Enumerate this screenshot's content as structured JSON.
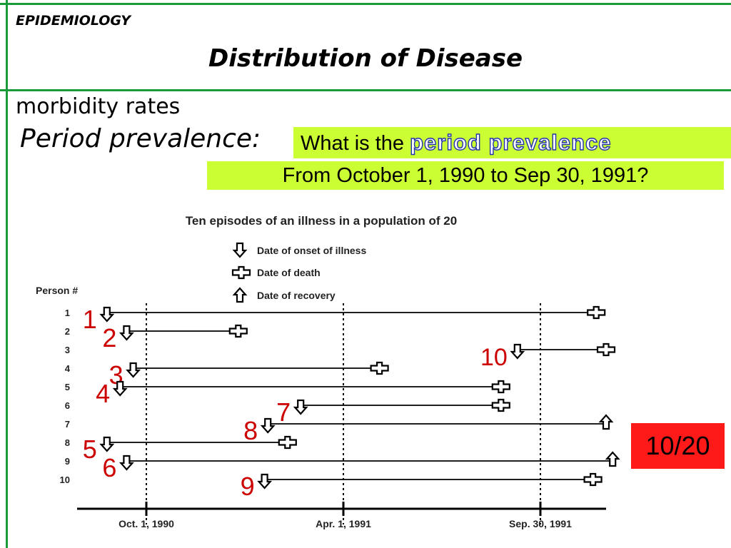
{
  "header": {
    "topic": "EPIDEMIOLOGY",
    "title": "Distribution of Disease"
  },
  "content": {
    "subtitle": "morbidity rates",
    "topic_line": "Period prevalence:",
    "question_prefix": "What is the ",
    "question_highlight": "period prevalence",
    "question_line2": "From October 1, 1990 to Sep 30, 1991?",
    "answer": "10/20"
  },
  "colors": {
    "frame": "#1a9a3a",
    "question_bg": "#ccff33",
    "answer_bg": "#ff1a1a",
    "highlight_stroke": "#2233aa",
    "red_label": "#cc0000"
  },
  "chart_data": {
    "type": "timeline",
    "title": "Ten episodes of an illness in a population of 20",
    "ylabel": "Person #",
    "legend": [
      {
        "symbol": "down-arrow",
        "label": "Date of onset of illness"
      },
      {
        "symbol": "cross",
        "label": "Date of death"
      },
      {
        "symbol": "up-arrow",
        "label": "Date of recovery"
      }
    ],
    "x_ticks": [
      {
        "label": "Oct. 1, 1990",
        "month": 0
      },
      {
        "label": "Apr. 1, 1991",
        "month": 6
      },
      {
        "label": "Sep. 30, 1991",
        "month": 12
      }
    ],
    "xlim": [
      -2,
      15.3
    ],
    "persons": [
      1,
      2,
      3,
      4,
      5,
      6,
      7,
      8,
      9,
      10
    ],
    "episodes": [
      {
        "person": 1,
        "onset": -1.2,
        "end": 13.7,
        "outcome": "death",
        "label": "1"
      },
      {
        "person": 2,
        "onset": -0.6,
        "end": 2.8,
        "outcome": "death",
        "label": "2"
      },
      {
        "person": 3,
        "onset": 11.3,
        "end": 14.0,
        "outcome": "death",
        "label": "10"
      },
      {
        "person": 4,
        "onset": -0.4,
        "end": 7.1,
        "outcome": "death",
        "label": "3"
      },
      {
        "person": 5,
        "onset": -0.8,
        "end": 10.8,
        "outcome": "death",
        "label": "4"
      },
      {
        "person": 6,
        "onset": 4.7,
        "end": 10.8,
        "outcome": "death",
        "label": "7"
      },
      {
        "person": 7,
        "onset": 3.7,
        "end": 14.0,
        "outcome": "recovery",
        "label": "8"
      },
      {
        "person": 8,
        "onset": -1.2,
        "end": 4.3,
        "outcome": "death",
        "label": "5"
      },
      {
        "person": 9,
        "onset": -0.6,
        "end": 14.2,
        "outcome": "recovery",
        "label": "6"
      },
      {
        "person": 10,
        "onset": 3.6,
        "end": 13.6,
        "outcome": "death",
        "label": "9"
      }
    ],
    "grid": false,
    "legend_position": "top-center"
  }
}
